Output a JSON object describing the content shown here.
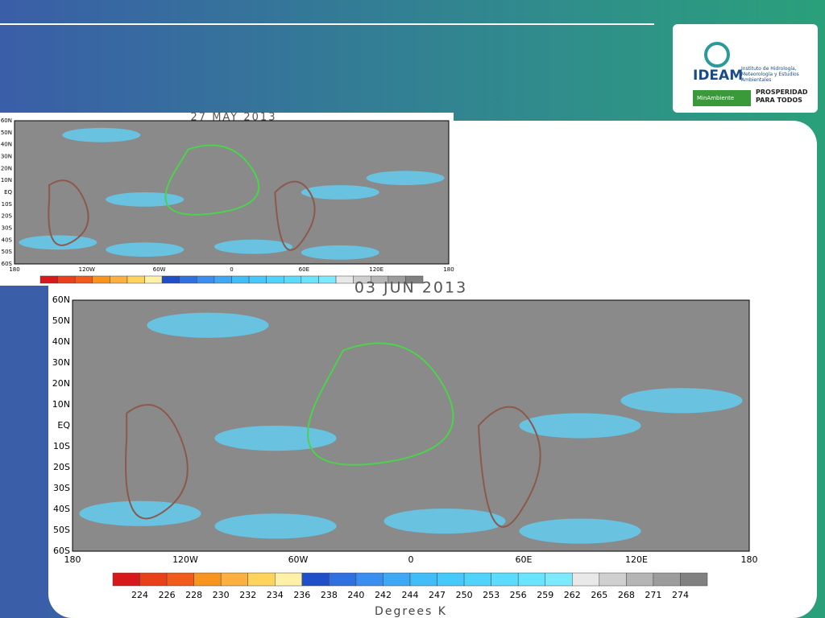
{
  "logo": {
    "name": "IDEAM",
    "subtitle": "Instituto de Hidrología, Meteorología y Estudios Ambientales",
    "ministry": "MinAmbiente",
    "slogan": "PROSPERIDAD PARA TODOS"
  },
  "maps": [
    {
      "title": "27 MAY 2013",
      "lat_labels": [
        "60N",
        "50N",
        "40N",
        "30N",
        "20N",
        "10N",
        "EQ",
        "10S",
        "20S",
        "30S",
        "40S",
        "50S",
        "60S"
      ],
      "lon_labels": [
        "180",
        "120W",
        "60W",
        "0",
        "60E",
        "120E",
        "180"
      ]
    },
    {
      "title": "03 JUN 2013",
      "lat_labels": [
        "60N",
        "50N",
        "40N",
        "30N",
        "20N",
        "10N",
        "EQ",
        "10S",
        "20S",
        "30S",
        "40S",
        "50S",
        "60S"
      ],
      "lon_labels": [
        "180",
        "120W",
        "60W",
        "0",
        "60E",
        "120E",
        "180"
      ]
    }
  ],
  "colorbar": {
    "labels": [
      "224",
      "226",
      "228",
      "230",
      "232",
      "234",
      "236",
      "238",
      "240",
      "242",
      "244",
      "247",
      "250",
      "253",
      "256",
      "259",
      "262",
      "265",
      "268",
      "271",
      "274"
    ],
    "unit": "Degrees K"
  }
}
